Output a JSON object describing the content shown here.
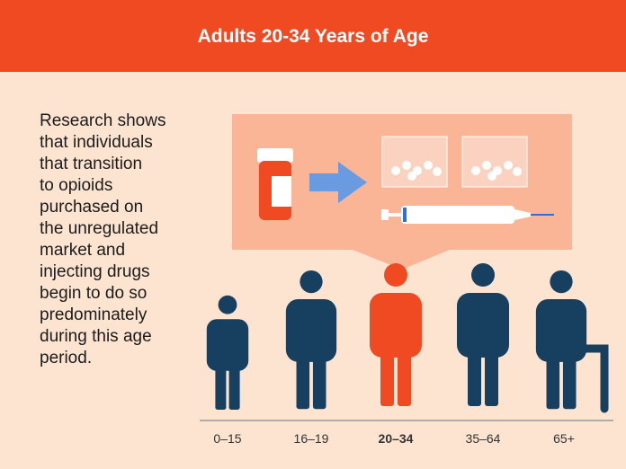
{
  "header": {
    "title": "Adults 20-34 Years of Age"
  },
  "body": {
    "lines": [
      "Research shows",
      "that individuals",
      "that transition",
      "to opioids",
      "purchased on",
      "the unregulated",
      "market and",
      "injecting drugs",
      "begin to do so",
      "predominately",
      "during this age",
      "period."
    ]
  },
  "age_groups": [
    "0–15",
    "16–19",
    "20–34",
    "35–64",
    "65+"
  ]
}
